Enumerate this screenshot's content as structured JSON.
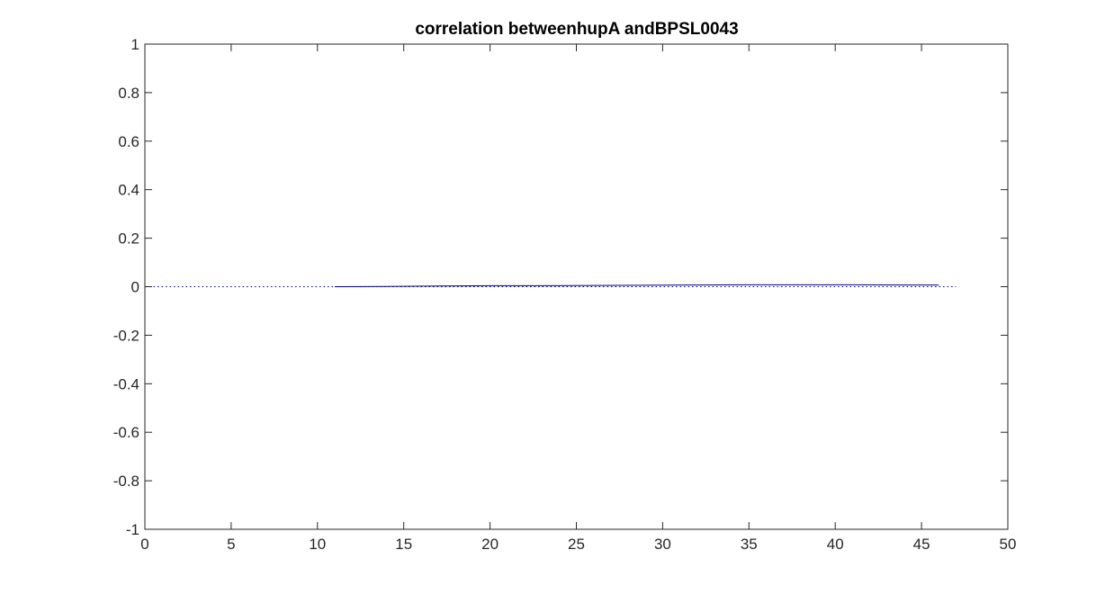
{
  "chart_data": {
    "type": "line",
    "title": "correlation betweenhupA andBPSL0043",
    "xlabel": "",
    "ylabel": "",
    "xlim": [
      0,
      50
    ],
    "ylim": [
      -1,
      1
    ],
    "x_ticks": [
      0,
      5,
      10,
      15,
      20,
      25,
      30,
      35,
      40,
      45,
      50
    ],
    "x_tick_labels": [
      "0",
      "5",
      "10",
      "15",
      "20",
      "25",
      "30",
      "35",
      "40",
      "45",
      "50"
    ],
    "y_ticks": [
      1,
      0.8,
      0.6,
      0.4,
      0.2,
      0,
      -0.2,
      -0.4,
      -0.6,
      -0.8,
      -1
    ],
    "y_tick_labels": [
      "1",
      "0.8",
      "0.6",
      "0.4",
      "0.2",
      "0",
      "-0.2",
      "-0.4",
      "-0.6",
      "-0.8",
      "-1"
    ],
    "grid": false,
    "box": true,
    "series": [
      {
        "style": "solid",
        "color": "#00007f",
        "x": [
          11,
          14,
          17,
          20,
          23,
          26,
          29,
          32,
          35,
          38,
          41,
          44,
          46
        ],
        "y": [
          0.0,
          0.001,
          0.003,
          0.004,
          0.004,
          0.005,
          0.006,
          0.007,
          0.008,
          0.008,
          0.008,
          0.007,
          0.007
        ]
      },
      {
        "style": "dotted",
        "color": "#00007f",
        "x": [
          0.5,
          47
        ],
        "y": [
          0,
          0
        ]
      }
    ]
  }
}
